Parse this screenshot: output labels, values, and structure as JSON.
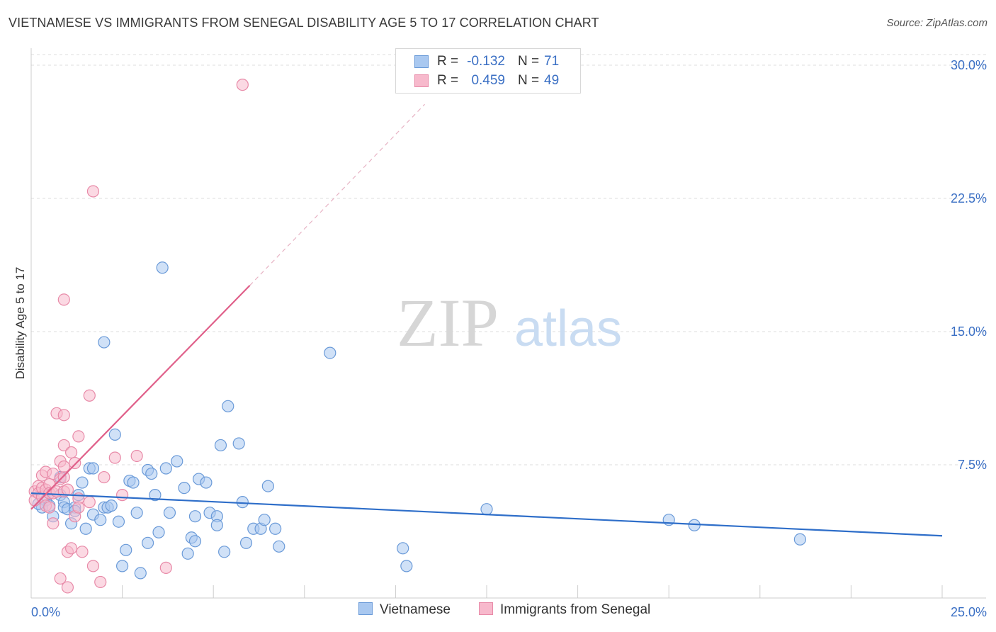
{
  "header": {
    "title": "VIETNAMESE VS IMMIGRANTS FROM SENEGAL DISABILITY AGE 5 TO 17 CORRELATION CHART",
    "source": "Source: ZipAtlas.com"
  },
  "watermark": {
    "zip": "ZIP",
    "atlas": "atlas"
  },
  "legend": {
    "rows": [
      {
        "r_label": "R =",
        "r_value": "-0.132",
        "n_label": "N =",
        "n_value": "71"
      },
      {
        "r_label": "R =",
        "r_value": "0.459",
        "n_label": "N =",
        "n_value": "49"
      }
    ]
  },
  "colors": {
    "blue_fill": "#a9c8f0",
    "blue_stroke": "#6a9ad8",
    "blue_line": "#2e6ec9",
    "pink_fill": "#f7b9cc",
    "pink_stroke": "#e88aa8",
    "pink_line": "#e0608a",
    "value_text": "#3a6fc4",
    "grid": "#dddddd",
    "axis": "#cccccc"
  },
  "chart_data": {
    "type": "scatter",
    "title": "VIETNAMESE VS IMMIGRANTS FROM SENEGAL DISABILITY AGE 5 TO 17 CORRELATION CHART",
    "xlabel": "",
    "ylabel": "Disability Age 5 to 17",
    "xlim": [
      0,
      25
    ],
    "ylim": [
      0,
      30.6
    ],
    "x_tick_labels": [
      "0.0%",
      "25.0%"
    ],
    "y_ticks": [
      7.5,
      15.0,
      22.5,
      30.0
    ],
    "y_tick_labels": [
      "7.5%",
      "15.0%",
      "22.5%",
      "30.0%"
    ],
    "grid": true,
    "legend_position": "top-center",
    "series": [
      {
        "name": "Vietnamese",
        "r": -0.132,
        "n": 71,
        "trend": {
          "x0": 0.0,
          "y0": 5.9,
          "x1": 25.0,
          "y1": 3.5
        },
        "points": [
          [
            0.3,
            5.1
          ],
          [
            0.4,
            5.5
          ],
          [
            0.5,
            5.2
          ],
          [
            0.6,
            4.6
          ],
          [
            0.8,
            6.8
          ],
          [
            0.8,
            5.8
          ],
          [
            0.9,
            5.4
          ],
          [
            0.9,
            5.1
          ],
          [
            1.0,
            5.0
          ],
          [
            1.1,
            4.2
          ],
          [
            1.2,
            5.1
          ],
          [
            1.3,
            5.8
          ],
          [
            1.4,
            6.5
          ],
          [
            1.5,
            3.9
          ],
          [
            1.6,
            7.3
          ],
          [
            1.7,
            4.7
          ],
          [
            1.7,
            7.3
          ],
          [
            1.9,
            4.4
          ],
          [
            2.0,
            5.1
          ],
          [
            2.1,
            5.1
          ],
          [
            2.2,
            5.2
          ],
          [
            2.0,
            14.4
          ],
          [
            2.3,
            9.2
          ],
          [
            2.4,
            4.3
          ],
          [
            2.5,
            1.8
          ],
          [
            2.6,
            2.7
          ],
          [
            2.7,
            6.6
          ],
          [
            2.8,
            6.5
          ],
          [
            2.9,
            4.8
          ],
          [
            3.0,
            1.4
          ],
          [
            3.2,
            3.1
          ],
          [
            3.2,
            7.2
          ],
          [
            3.3,
            7.0
          ],
          [
            3.4,
            5.8
          ],
          [
            3.5,
            3.7
          ],
          [
            3.6,
            18.6
          ],
          [
            3.7,
            7.3
          ],
          [
            3.8,
            4.8
          ],
          [
            4.0,
            7.7
          ],
          [
            4.2,
            6.2
          ],
          [
            4.3,
            2.5
          ],
          [
            4.4,
            3.4
          ],
          [
            4.5,
            3.2
          ],
          [
            4.5,
            4.6
          ],
          [
            4.6,
            6.7
          ],
          [
            4.8,
            6.5
          ],
          [
            4.9,
            4.8
          ],
          [
            5.1,
            4.6
          ],
          [
            5.1,
            4.1
          ],
          [
            5.2,
            8.6
          ],
          [
            5.3,
            2.6
          ],
          [
            5.4,
            10.8
          ],
          [
            5.7,
            8.7
          ],
          [
            5.8,
            5.4
          ],
          [
            5.9,
            3.1
          ],
          [
            6.1,
            3.9
          ],
          [
            6.3,
            3.9
          ],
          [
            6.4,
            4.4
          ],
          [
            6.5,
            6.3
          ],
          [
            6.7,
            3.9
          ],
          [
            6.8,
            2.9
          ],
          [
            8.2,
            13.8
          ],
          [
            10.2,
            2.8
          ],
          [
            10.3,
            1.8
          ],
          [
            12.5,
            5.0
          ],
          [
            17.5,
            4.4
          ],
          [
            18.2,
            4.1
          ],
          [
            21.1,
            3.3
          ],
          [
            0.2,
            5.3
          ],
          [
            0.5,
            5.9
          ],
          [
            1.2,
            4.9
          ]
        ]
      },
      {
        "name": "Immigrants from Senegal",
        "r": 0.459,
        "n": 49,
        "trend": {
          "x0": 0.0,
          "y0": 5.0,
          "x1": 6.0,
          "y1": 17.6
        },
        "trend_ext": {
          "x0": 6.0,
          "y0": 17.6,
          "x1": 10.8,
          "y1": 27.8
        },
        "points": [
          [
            0.1,
            6.0
          ],
          [
            0.1,
            5.5
          ],
          [
            0.2,
            6.3
          ],
          [
            0.2,
            5.9
          ],
          [
            0.3,
            5.7
          ],
          [
            0.3,
            6.2
          ],
          [
            0.3,
            6.9
          ],
          [
            0.4,
            7.1
          ],
          [
            0.4,
            6.1
          ],
          [
            0.4,
            5.2
          ],
          [
            0.5,
            6.4
          ],
          [
            0.5,
            5.9
          ],
          [
            0.5,
            5.1
          ],
          [
            0.6,
            5.9
          ],
          [
            0.6,
            7.0
          ],
          [
            0.6,
            4.2
          ],
          [
            0.7,
            6.0
          ],
          [
            0.7,
            10.4
          ],
          [
            0.8,
            6.7
          ],
          [
            0.8,
            7.7
          ],
          [
            0.8,
            1.1
          ],
          [
            0.9,
            10.3
          ],
          [
            0.9,
            8.6
          ],
          [
            0.9,
            6.8
          ],
          [
            0.9,
            7.4
          ],
          [
            0.9,
            6.0
          ],
          [
            0.9,
            16.8
          ],
          [
            1.0,
            6.1
          ],
          [
            1.0,
            2.6
          ],
          [
            1.0,
            0.6
          ],
          [
            1.1,
            2.8
          ],
          [
            1.1,
            8.2
          ],
          [
            1.2,
            7.6
          ],
          [
            1.2,
            4.6
          ],
          [
            1.3,
            9.1
          ],
          [
            1.3,
            5.6
          ],
          [
            1.3,
            5.1
          ],
          [
            1.4,
            2.6
          ],
          [
            1.6,
            11.4
          ],
          [
            1.6,
            5.4
          ],
          [
            1.7,
            1.8
          ],
          [
            1.7,
            22.9
          ],
          [
            1.9,
            0.9
          ],
          [
            2.0,
            6.8
          ],
          [
            2.3,
            7.9
          ],
          [
            2.5,
            5.8
          ],
          [
            2.9,
            8.0
          ],
          [
            3.7,
            1.7
          ],
          [
            5.8,
            28.9
          ]
        ]
      }
    ]
  },
  "bottom_legend": {
    "items": [
      "Vietnamese",
      "Immigrants from Senegal"
    ]
  }
}
